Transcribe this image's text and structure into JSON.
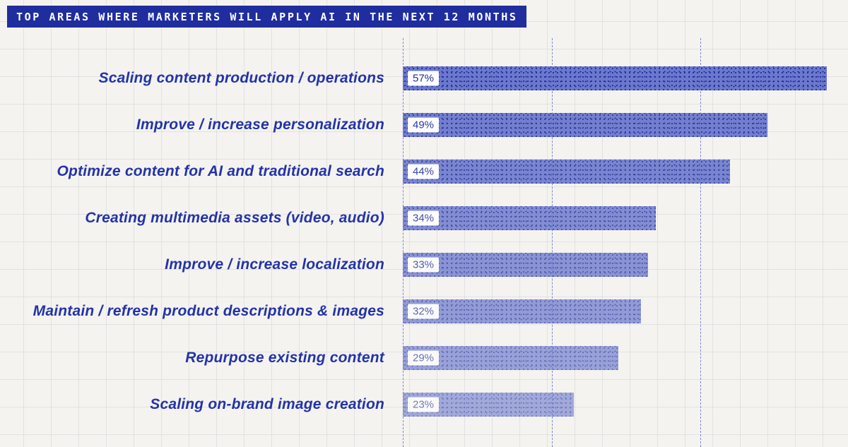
{
  "header": {
    "title": "TOP AREAS WHERE MARKETERS WILL APPLY AI IN THE NEXT 12 MONTHS"
  },
  "chart_data": {
    "type": "bar",
    "orientation": "horizontal",
    "title": "TOP AREAS WHERE MARKETERS WILL APPLY AI IN THE NEXT 12 MONTHS",
    "categories": [
      "Scaling content production / operations",
      "Improve / increase personalization",
      "Optimize content for AI and traditional search",
      "Creating multimedia assets (video, audio)",
      "Improve / increase localization",
      "Maintain / refresh product descriptions & images",
      "Repurpose existing content",
      "Scaling on-brand image creation"
    ],
    "values": [
      57,
      49,
      44,
      34,
      33,
      32,
      29,
      23
    ],
    "value_labels": [
      "57%",
      "49%",
      "44%",
      "34%",
      "33%",
      "32%",
      "29%",
      "23%"
    ],
    "unit": "%",
    "axis": {
      "min": 0,
      "max": 57,
      "gridlines": [
        0,
        20,
        40
      ]
    },
    "legend": "none",
    "grid": "dashed vertical gridlines over graph-paper background",
    "colors": {
      "accent": "#1f2d9e",
      "bar_fill": "#6b78cd",
      "bar_dots": "#1c2a96",
      "label_text": "#2433a8",
      "value_chip_bg": "#ffffff",
      "value_chip_text": "#1f2d9e",
      "background": "#f4f3ef",
      "gridline": "#7b87d4"
    }
  }
}
